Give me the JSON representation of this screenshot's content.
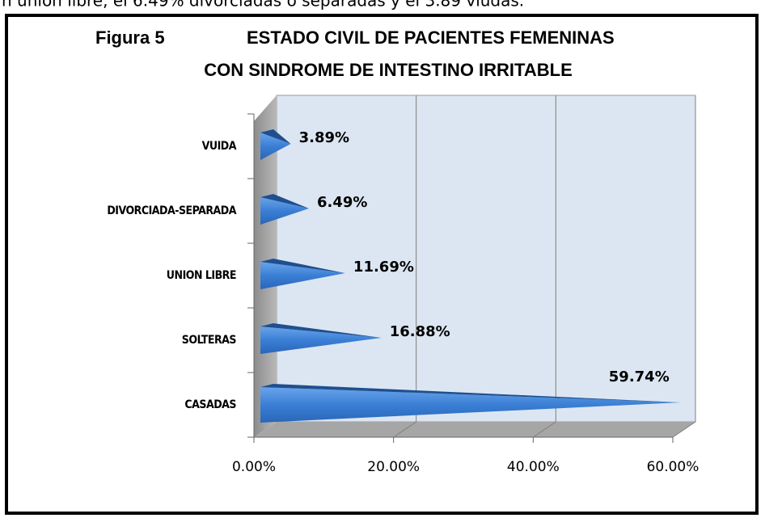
{
  "header_fragment": "n unión libre, el 6.49% divorciadas o separadas y el 3.89 viudas.",
  "chart_data": {
    "type": "bar",
    "orientation": "horizontal",
    "figure_label": "Figura 5",
    "title": [
      "ESTADO CIVIL DE PACIENTES FEMENINAS",
      "CON SINDROME DE INTESTINO IRRITABLE"
    ],
    "categories": [
      "VUIDA",
      "DIVORCIADA-SEPARADA",
      "UNION LIBRE",
      "SOLTERAS",
      "CASADAS"
    ],
    "values": [
      3.89,
      6.49,
      11.69,
      16.88,
      59.74
    ],
    "value_labels": [
      "3.89%",
      "6.49%",
      "11.69%",
      "16.88%",
      "59.74%"
    ],
    "color": "#3a7fd5",
    "xlim": [
      0,
      60
    ],
    "xticks": [
      {
        "value": 0,
        "label": "0.00%"
      },
      {
        "value": 20,
        "label": "20.00%"
      },
      {
        "value": 40,
        "label": "40.00%"
      },
      {
        "value": 60,
        "label": "60.00%"
      }
    ],
    "grid": true
  }
}
